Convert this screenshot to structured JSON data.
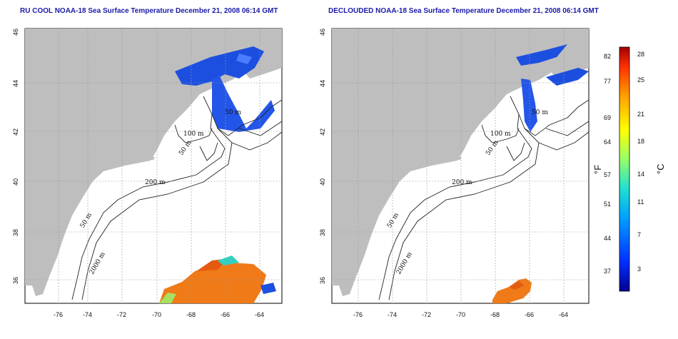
{
  "panels": [
    {
      "title": "RU COOL NOAA-18 Sea Surface Temperature December 21, 2008 06:14 GMT",
      "contour_labels": [
        "50 m",
        "100 m",
        "50 m",
        "200 m",
        "50 m",
        "2000 m"
      ]
    },
    {
      "title": "DECLOUDED NOAA-18 Sea Surface Temperature December 21, 2008 06:14 GMT",
      "contour_labels": [
        "50 m",
        "100 m",
        "50 m",
        "200 m",
        "50 m",
        "2000 m"
      ]
    }
  ],
  "axes": {
    "lon_ticks": [
      "-76",
      "-74",
      "-72",
      "-70",
      "-68",
      "-66",
      "-64"
    ],
    "lat_ticks": [
      "46",
      "44",
      "42",
      "40",
      "38",
      "36"
    ],
    "lon_range": [
      -77,
      -63
    ],
    "lat_range": [
      35,
      46
    ],
    "grid": "dotted"
  },
  "colorbar": {
    "unit_f": "°F",
    "unit_c": "°C",
    "f_ticks": [
      "82",
      "77",
      "69",
      "64",
      "57",
      "51",
      "44",
      "37"
    ],
    "c_ticks": [
      "28",
      "25",
      "21",
      "18",
      "14",
      "11",
      "7",
      "3"
    ],
    "colors": [
      "#000090",
      "#0030ff",
      "#00a0ff",
      "#20e0d0",
      "#a0ff60",
      "#ffff00",
      "#ffa000",
      "#ff3000",
      "#a00000"
    ]
  },
  "colors": {
    "land": "#bebebe",
    "cold_sst": "#1c4fe0",
    "warm_sst": "#f07a18",
    "title": "#1a1aa8"
  }
}
